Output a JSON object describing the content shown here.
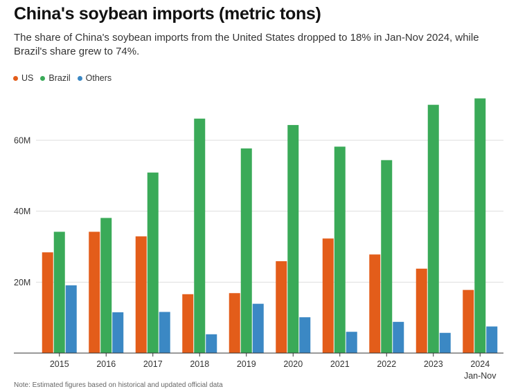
{
  "chart_data": {
    "type": "bar",
    "title": "China's soybean imports (metric tons)",
    "subtitle": "The share of China's soybean imports from the United States dropped to 18% in Jan-Nov 2024, while Brazil's share grew to 74%.",
    "categories": [
      "2015",
      "2016",
      "2017",
      "2018",
      "2019",
      "2020",
      "2021",
      "2022",
      "2023",
      "2024"
    ],
    "category_sublabels": [
      "",
      "",
      "",
      "",
      "",
      "",
      "",
      "",
      "",
      "Jan-Nov"
    ],
    "series": [
      {
        "name": "US",
        "color": "#e35d1a",
        "values": [
          28.4,
          34.2,
          32.9,
          16.6,
          16.9,
          25.9,
          32.3,
          27.8,
          23.8,
          17.8
        ]
      },
      {
        "name": "Brazil",
        "color": "#3aaa58",
        "values": [
          34.2,
          38.1,
          50.9,
          66.1,
          57.7,
          64.3,
          58.2,
          54.4,
          70.0,
          71.8
        ]
      },
      {
        "name": "Others",
        "color": "#3b88c4",
        "values": [
          19.1,
          11.5,
          11.6,
          5.3,
          13.9,
          10.1,
          6.0,
          8.8,
          5.7,
          7.5
        ]
      }
    ],
    "ylim": [
      0,
      75
    ],
    "yticks": [
      20,
      40,
      60
    ],
    "ytick_labels": [
      "20M",
      "40M",
      "60M"
    ],
    "xlabel": "",
    "ylabel": "",
    "grid": true,
    "legend_position": "top-left"
  },
  "note": "Note: Estimated figures based on historical and updated official data"
}
